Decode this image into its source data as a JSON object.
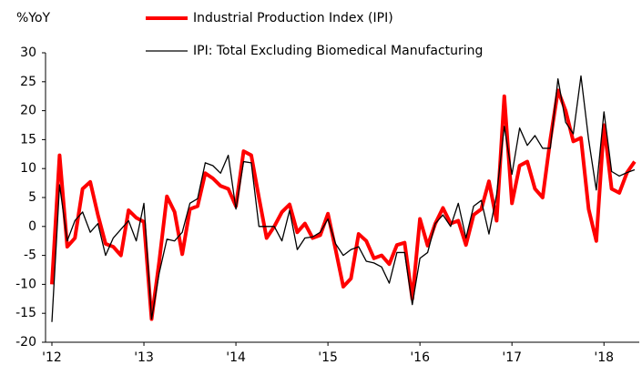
{
  "chart_data": {
    "type": "line",
    "y_label": "%YoY",
    "categories": [
      "'12",
      null,
      null,
      null,
      null,
      null,
      null,
      null,
      null,
      null,
      null,
      null,
      "'13",
      null,
      null,
      null,
      null,
      null,
      null,
      null,
      null,
      null,
      null,
      null,
      "'14",
      null,
      null,
      null,
      null,
      null,
      null,
      null,
      null,
      null,
      null,
      null,
      "'15",
      null,
      null,
      null,
      null,
      null,
      null,
      null,
      null,
      null,
      null,
      null,
      "'16",
      null,
      null,
      null,
      null,
      null,
      null,
      null,
      null,
      null,
      null,
      null,
      "'17",
      null,
      null,
      null,
      null,
      null,
      null,
      null,
      null,
      null,
      null,
      null,
      "'18",
      null,
      null,
      null,
      null
    ],
    "series": [
      {
        "name": "Industrial Production Index (IPI)",
        "color": "#ff0000",
        "width": 4,
        "values": [
          -10,
          12.3,
          -3.5,
          -2,
          6.5,
          7.7,
          2,
          -3,
          -3.5,
          -5,
          2.8,
          1.5,
          0.8,
          -16,
          -6,
          5.2,
          2.5,
          -4.8,
          3,
          3.5,
          9.2,
          8.3,
          7,
          6.5,
          3.5,
          13,
          12.3,
          5,
          -2,
          0,
          2.5,
          3.8,
          -1,
          0.5,
          -2,
          -1.5,
          2.2,
          -4,
          -10.4,
          -9,
          -1.3,
          -2.5,
          -5.5,
          -5,
          -6.5,
          -3.2,
          -2.8,
          -12.5,
          1.3,
          -3.3,
          0.5,
          3.2,
          0.5,
          1,
          -3.2,
          2,
          3,
          7.8,
          1,
          22.5,
          4,
          10.5,
          11.2,
          6.5,
          5,
          15,
          23.5,
          20,
          14.7,
          15.3,
          3,
          -2.5,
          17.5,
          6.5,
          5.8,
          9.3,
          11.2
        ]
      },
      {
        "name": "IPI: Total Excluding Biomedical Manufacturing",
        "color": "#000000",
        "width": 1.3,
        "values": [
          -16.5,
          7.2,
          -2.5,
          1,
          2.5,
          -1,
          0.5,
          -5,
          -2,
          -0.5,
          1,
          -2.5,
          4,
          -16,
          -8,
          -2.2,
          -2.5,
          -1,
          4,
          4.8,
          11,
          10.5,
          9.2,
          12.3,
          3,
          11.2,
          11,
          0,
          0,
          0,
          -2.5,
          2.8,
          -4,
          -2,
          -1.8,
          -1,
          1.3,
          -3,
          -5,
          -4,
          -3.5,
          -6,
          -6.3,
          -7,
          -9.8,
          -4.5,
          -4.5,
          -13.5,
          -5.5,
          -4.5,
          0.5,
          2,
          0,
          4,
          -2,
          3.5,
          4.5,
          -1.3,
          5.5,
          17.3,
          9,
          17,
          14,
          15.7,
          13.5,
          13.5,
          25.5,
          18,
          16,
          26,
          15,
          6.3,
          19.8,
          9.5,
          8.7,
          9.3,
          9.8
        ]
      }
    ],
    "ylim": [
      -20,
      30
    ],
    "yticks": [
      30,
      25,
      20,
      15,
      10,
      5,
      0,
      -5,
      -10,
      -15,
      -20
    ]
  }
}
